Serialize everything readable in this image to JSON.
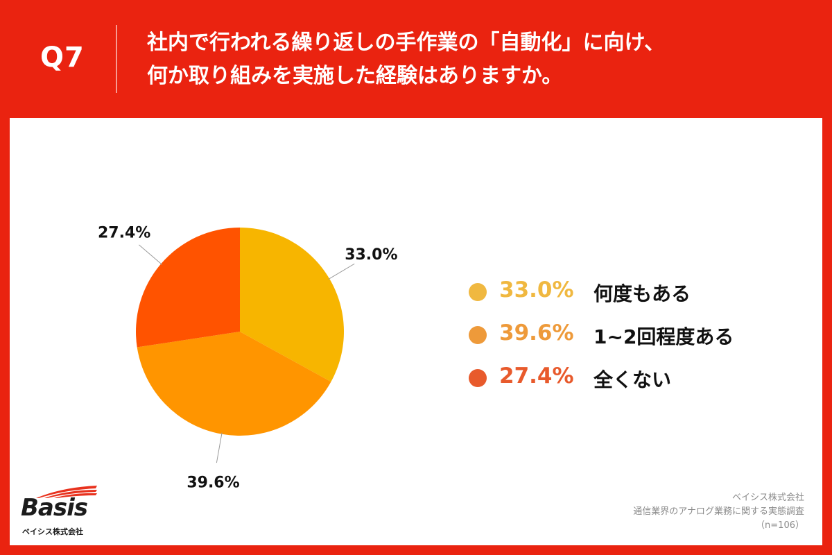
{
  "header": {
    "qnum": "Q7",
    "line1": "社内で行われる繰り返しの手作業の「自動化」に向け、",
    "line2": "何か取り組みを実施した経験はありますか。"
  },
  "chart_data": {
    "type": "pie",
    "title": "社内で行われる繰り返しの手作業の「自動化」に向け、何か取り組みを実施した経験はありますか。",
    "slices": [
      {
        "label": "何度もある",
        "value": 33.0,
        "display": "33.0%",
        "color": "#F7B500",
        "legend_color": "#F0B840"
      },
      {
        "label": "1~2回程度ある",
        "value": 39.6,
        "display": "39.6%",
        "color": "#FF9500",
        "legend_color": "#EE9A3A"
      },
      {
        "label": "全くない",
        "value": 27.4,
        "display": "27.4%",
        "color": "#FF5300",
        "legend_color": "#E85A2C"
      }
    ],
    "legend_position": "right"
  },
  "footer": {
    "company": "ベイシス株式会社",
    "survey": "通信業界のアナログ業務に関する実態調査",
    "sample": "（n=106）"
  },
  "logo": {
    "word": "Basis",
    "sub": "ベイシス株式会社"
  }
}
